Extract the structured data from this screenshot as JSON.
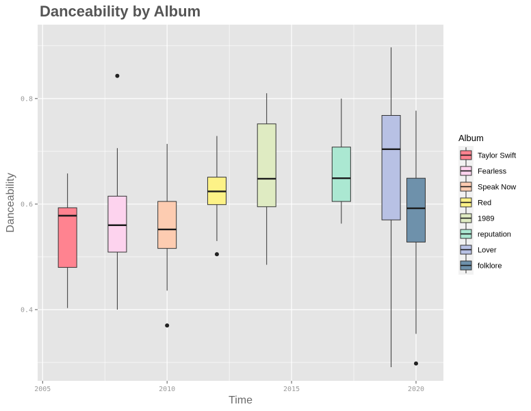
{
  "chart_data": {
    "type": "boxplot",
    "title": "Danceability by Album",
    "xlabel": "Time",
    "ylabel": "Danceability",
    "xlim": [
      2004.8,
      2021.1
    ],
    "ylim": [
      0.265,
      0.94
    ],
    "x_ticks": [
      {
        "value": 2005,
        "label": "2005"
      },
      {
        "value": 2010,
        "label": "2010"
      },
      {
        "value": 2015,
        "label": "2015"
      },
      {
        "value": 2020,
        "label": "2020"
      }
    ],
    "y_ticks": [
      {
        "value": 0.4,
        "label": "0.4"
      },
      {
        "value": 0.6,
        "label": "0.6"
      },
      {
        "value": 0.8,
        "label": "0.8"
      }
    ],
    "grid": true,
    "legend_title": "Album",
    "legend_position": "right",
    "series": [
      {
        "name": "Taylor Swift",
        "x": 2006,
        "color": "#ff8390",
        "whisker_low": 0.403,
        "q1": 0.48,
        "median": 0.578,
        "q3": 0.593,
        "whisker_high": 0.658,
        "outliers": []
      },
      {
        "name": "Fearless",
        "x": 2008,
        "color": "#fdd3ee",
        "whisker_low": 0.4,
        "q1": 0.509,
        "median": 0.56,
        "q3": 0.615,
        "whisker_high": 0.706,
        "outliers": [
          0.843
        ]
      },
      {
        "name": "Speak Now",
        "x": 2010,
        "color": "#fdccb1",
        "whisker_low": 0.436,
        "q1": 0.516,
        "median": 0.552,
        "q3": 0.605,
        "whisker_high": 0.714,
        "outliers": [
          0.37
        ]
      },
      {
        "name": "Red",
        "x": 2012,
        "color": "#fdf287",
        "whisker_low": 0.53,
        "q1": 0.599,
        "median": 0.624,
        "q3": 0.651,
        "whisker_high": 0.729,
        "outliers": [
          0.505
        ]
      },
      {
        "name": "1989",
        "x": 2014,
        "color": "#dfebc2",
        "whisker_low": 0.485,
        "q1": 0.595,
        "median": 0.648,
        "q3": 0.752,
        "whisker_high": 0.81,
        "outliers": []
      },
      {
        "name": "reputation",
        "x": 2017,
        "color": "#abe8d2",
        "whisker_low": 0.563,
        "q1": 0.605,
        "median": 0.649,
        "q3": 0.708,
        "whisker_high": 0.8,
        "outliers": []
      },
      {
        "name": "Lover",
        "x": 2019,
        "color": "#b8c1e4",
        "whisker_low": 0.291,
        "q1": 0.57,
        "median": 0.704,
        "q3": 0.768,
        "whisker_high": 0.897,
        "outliers": []
      },
      {
        "name": "folklore",
        "x": 2020,
        "color": "#6e91ab",
        "whisker_low": 0.354,
        "q1": 0.528,
        "median": 0.592,
        "q3": 0.649,
        "whisker_high": 0.777,
        "outliers": [
          0.298
        ]
      }
    ]
  },
  "colors": {
    "panel_background": "#e5e5e5",
    "grid_major": "#ffffff",
    "box_outline": "#333333",
    "median_line": "#1a1a1a",
    "title_text": "#555555",
    "tick_text": "#9a9a9a"
  }
}
